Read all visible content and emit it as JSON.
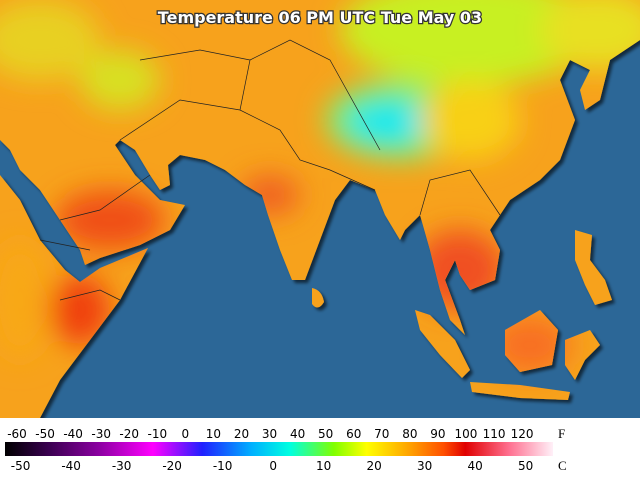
{
  "title": "Temperature 06 PM UTC Tue May 03",
  "legend": {
    "fahrenheit": {
      "unit": "F",
      "ticks": [
        -60,
        -50,
        -40,
        -30,
        -20,
        -10,
        0,
        10,
        20,
        30,
        40,
        50,
        60,
        70,
        80,
        90,
        100,
        110,
        120
      ]
    },
    "celsius": {
      "unit": "C",
      "ticks": [
        -50,
        -40,
        -30,
        -20,
        -10,
        0,
        10,
        20,
        30,
        40,
        50
      ]
    }
  }
}
